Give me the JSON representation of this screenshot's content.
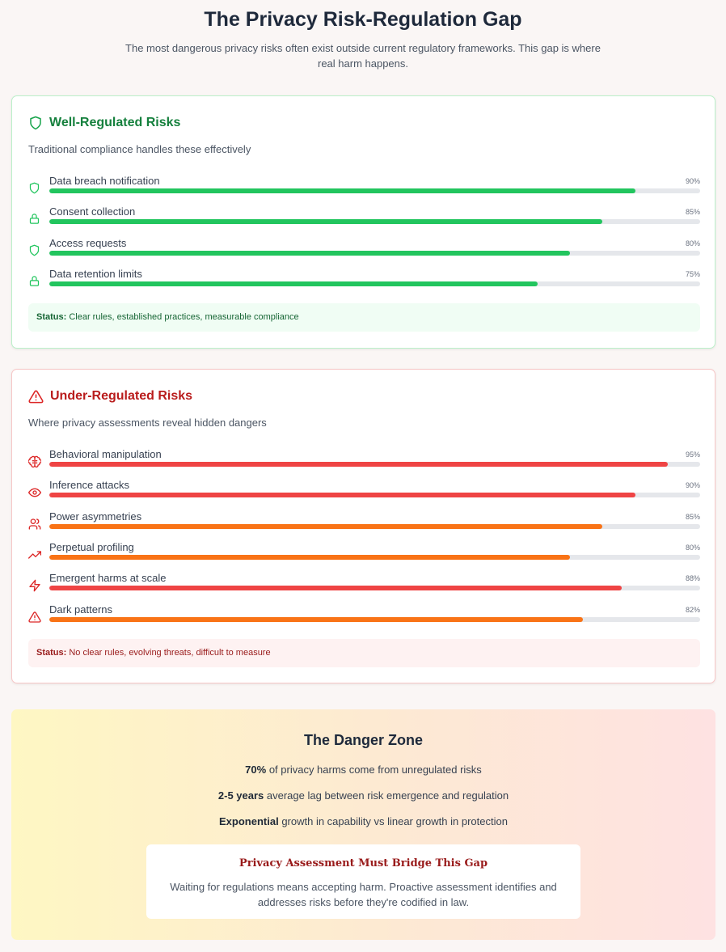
{
  "header": {
    "title": "The Privacy Risk-Regulation Gap",
    "subtitle": "The most dangerous privacy risks often exist outside current regulatory frameworks. This gap is where real harm happens."
  },
  "well_regulated": {
    "title": "Well-Regulated Risks",
    "icon": "shield-icon",
    "description": "Traditional compliance handles these effectively",
    "color": "#22c55e",
    "risks": [
      {
        "label": "Data breach notification",
        "percent_text": "90%",
        "value": 90,
        "icon": "shield-icon",
        "color": "#22c55e"
      },
      {
        "label": "Consent collection",
        "percent_text": "85%",
        "value": 85,
        "icon": "lock-icon",
        "color": "#22c55e"
      },
      {
        "label": "Access requests",
        "percent_text": "80%",
        "value": 80,
        "icon": "shield-icon",
        "color": "#22c55e"
      },
      {
        "label": "Data retention limits",
        "percent_text": "75%",
        "value": 75,
        "icon": "lock-icon",
        "color": "#22c55e"
      }
    ],
    "status_label": "Status:",
    "status_text": "Clear rules, established practices, measurable compliance"
  },
  "under_regulated": {
    "title": "Under-Regulated Risks",
    "icon": "warning-icon",
    "description": "Where privacy assessments reveal hidden dangers",
    "risks": [
      {
        "label": "Behavioral manipulation",
        "percent_text": "95%",
        "value": 95,
        "icon": "brain-icon",
        "color": "#ef4444"
      },
      {
        "label": "Inference attacks",
        "percent_text": "90%",
        "value": 90,
        "icon": "eye-icon",
        "color": "#ef4444"
      },
      {
        "label": "Power asymmetries",
        "percent_text": "85%",
        "value": 85,
        "icon": "users-icon",
        "color": "#f97316"
      },
      {
        "label": "Perpetual profiling",
        "percent_text": "80%",
        "value": 80,
        "icon": "trending-up-icon",
        "color": "#f97316"
      },
      {
        "label": "Emergent harms at scale",
        "percent_text": "88%",
        "value": 88,
        "icon": "lightning-icon",
        "color": "#ef4444"
      },
      {
        "label": "Dark patterns",
        "percent_text": "82%",
        "value": 82,
        "icon": "warning-icon",
        "color": "#f97316"
      }
    ],
    "status_label": "Status:",
    "status_text": "No clear rules, evolving threats, difficult to measure"
  },
  "danger_zone": {
    "title": "The Danger Zone",
    "facts": [
      {
        "bold": "70%",
        "text": " of privacy harms come from unregulated risks"
      },
      {
        "bold": "2-5 years",
        "text": " average lag between risk emergence and regulation"
      },
      {
        "bold": "Exponential",
        "text": " growth in capability vs linear growth in protection"
      }
    ],
    "callout_title": "Privacy Assessment Must Bridge This Gap",
    "callout_text": "Waiting for regulations means accepting harm. Proactive assessment identifies and addresses risks before they're codified in law."
  }
}
